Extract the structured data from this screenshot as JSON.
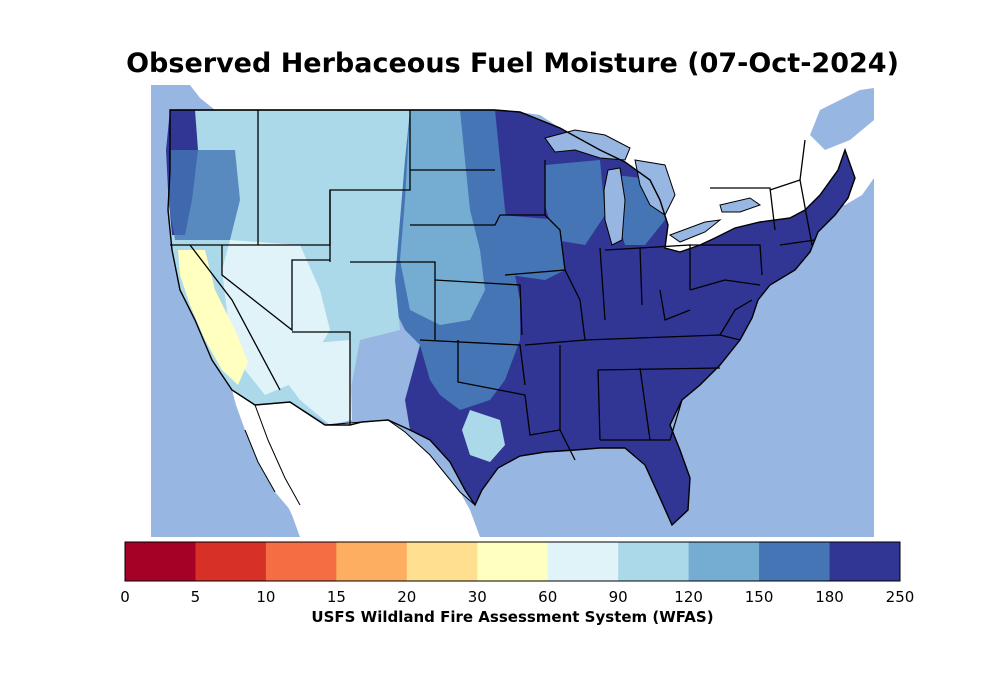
{
  "title": "Observed Herbaceous Fuel Moisture (07-Oct-2024)",
  "colorbar": {
    "label": "USFS Wildland Fire Assessment System (WFAS)",
    "ticks": [
      "0",
      "5",
      "10",
      "15",
      "20",
      "30",
      "60",
      "90",
      "120",
      "150",
      "180",
      "250"
    ],
    "colors": [
      "#a50026",
      "#d73027",
      "#f46d43",
      "#fdae61",
      "#fee090",
      "#ffffbf",
      "#e0f3f8",
      "#abd9e9",
      "#74add1",
      "#4575b4",
      "#313695"
    ]
  },
  "map": {
    "water_color": "#98b6e2",
    "land_outside_color": "#ffffff"
  }
}
